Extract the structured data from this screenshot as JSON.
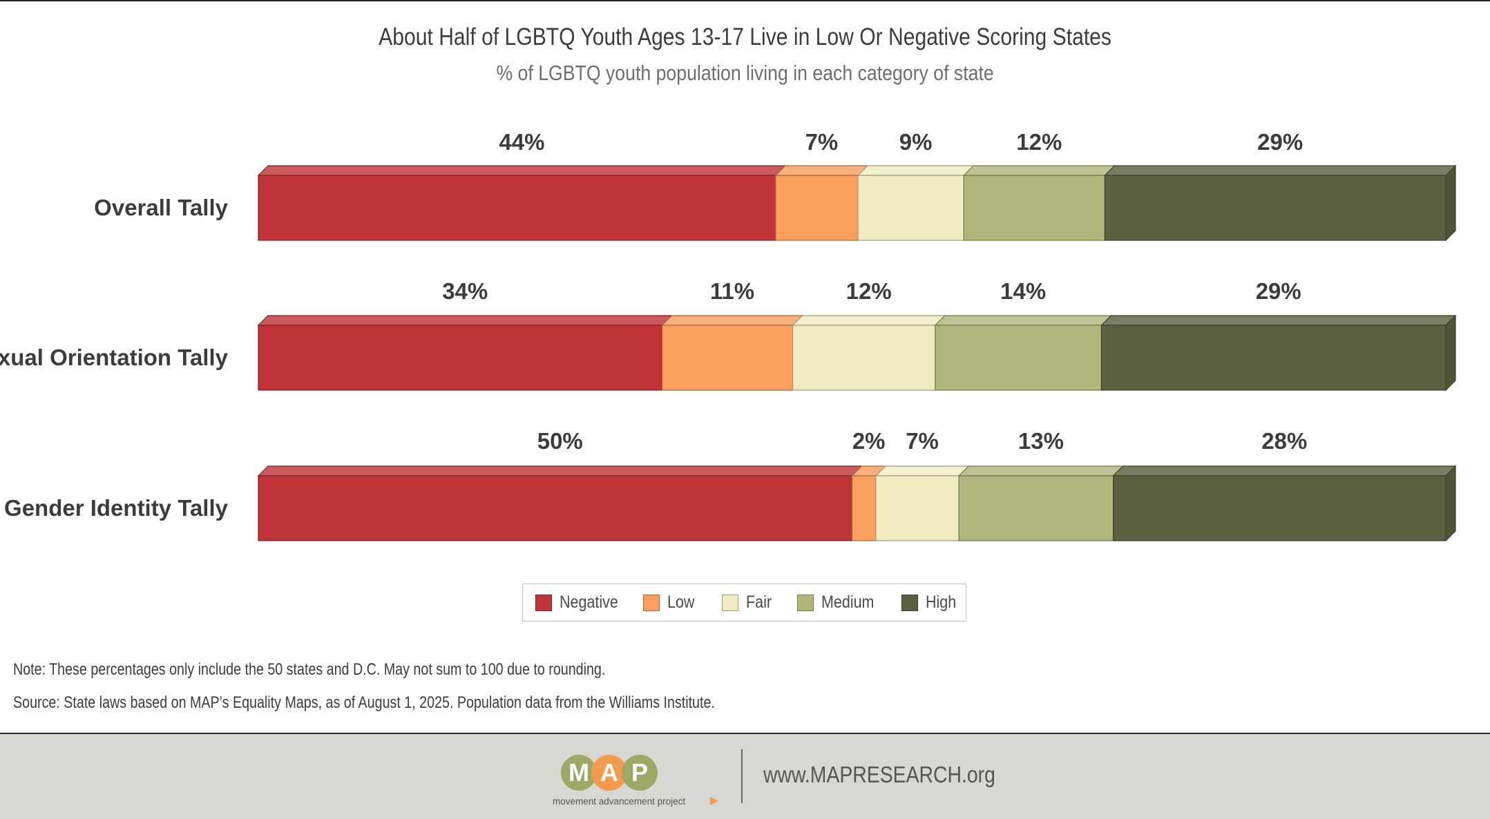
{
  "title": "About Half of LGBTQ Youth Ages 13-17 Live in Low Or Negative Scoring States",
  "subtitle": "% of LGBTQ youth population living in each category of state",
  "colors": {
    "Negative": "#c1343a",
    "Low": "#f9a05e",
    "Fair": "#f1ebc2",
    "Medium": "#b1b67c",
    "High": "#5d6040"
  },
  "chart_data": {
    "type": "bar",
    "orientation": "horizontal",
    "stacked": true,
    "title": "About Half of LGBTQ Youth Ages 13-17 Live in Low Or Negative Scoring States",
    "subtitle": "% of LGBTQ youth population living in each category of state",
    "categories": [
      "Overall Tally",
      "Sexual Orientation Tally",
      "Gender Identity Tally"
    ],
    "series": [
      {
        "name": "Negative",
        "values": [
          44,
          34,
          50
        ],
        "labels": [
          "44%",
          "34%",
          "50%"
        ]
      },
      {
        "name": "Low",
        "values": [
          7,
          11,
          2
        ],
        "labels": [
          "7%",
          "11%",
          "2%"
        ]
      },
      {
        "name": "Fair",
        "values": [
          9,
          12,
          7
        ],
        "labels": [
          "9%",
          "12%",
          "7%"
        ]
      },
      {
        "name": "Medium",
        "values": [
          12,
          14,
          13
        ],
        "labels": [
          "12%",
          "14%",
          "13%"
        ]
      },
      {
        "name": "High",
        "values": [
          29,
          29,
          28
        ],
        "labels": [
          "29%",
          "29%",
          "28%"
        ]
      }
    ],
    "legend_position": "bottom-center",
    "grid": false
  },
  "legend": [
    {
      "label": "Negative"
    },
    {
      "label": "Low"
    },
    {
      "label": "Fair"
    },
    {
      "label": "Medium"
    },
    {
      "label": "High"
    }
  ],
  "notes": {
    "note": "Note: These percentages only include the 50 states and D.C. May not sum to 100 due to rounding.",
    "source": "Source: State laws based on MAP’s Equality Maps, as of August 1, 2025. Population data from the Williams Institute."
  },
  "footer": {
    "logo_text": "MAP",
    "logo_tagline": "movement advancement project",
    "url": "www.MAPRESEARCH.org"
  }
}
